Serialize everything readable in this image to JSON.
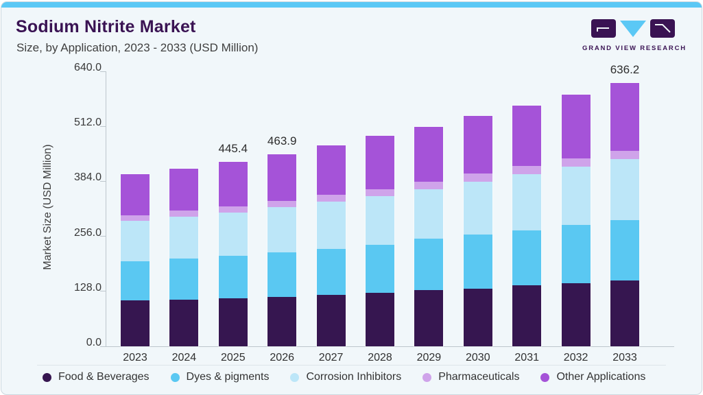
{
  "header": {
    "title": "Sodium Nitrite Market",
    "subtitle": "Size, by Application, 2023 - 2033 (USD Million)",
    "logo_text": "GRAND VIEW RESEARCH"
  },
  "chart_data": {
    "type": "bar",
    "stacked": true,
    "title": "Sodium Nitrite Market Size, by Application, 2023 - 2033 (USD Million)",
    "ylabel": "Market Size (USD Million)",
    "xlabel": "",
    "grid": false,
    "legend_position": "bottom",
    "ylim": [
      0,
      640
    ],
    "y_ticks": [
      "640.0",
      "512.0",
      "384.0",
      "256.0",
      "128.0",
      "0.0"
    ],
    "categories": [
      "2023",
      "2024",
      "2025",
      "2026",
      "2027",
      "2028",
      "2029",
      "2030",
      "2031",
      "2032",
      "2033"
    ],
    "series": [
      {
        "name": "Food & Beverages",
        "color": "#361650",
        "values": [
          110.5,
          113.4,
          116.2,
          120.0,
          123.9,
          128.9,
          136.0,
          139.8,
          147.1,
          152.1,
          159.7
        ]
      },
      {
        "name": "Dyes & pigments",
        "color": "#5ac8f2",
        "values": [
          95.0,
          98.0,
          103.0,
          107.5,
          112.0,
          117.0,
          123.6,
          129.8,
          133.4,
          140.6,
          145.6
        ]
      },
      {
        "name": "Corrosion Inhibitors",
        "color": "#bce6f8",
        "values": [
          96.7,
          101.0,
          103.8,
          108.2,
          113.1,
          116.5,
          120.2,
          127.9,
          135.2,
          140.7,
          146.3
        ]
      },
      {
        "name": "Pharmaceuticals",
        "color": "#cfa3ea",
        "values": [
          14.0,
          14.7,
          15.2,
          15.8,
          16.6,
          17.5,
          18.2,
          19.3,
          19.8,
          20.0,
          20.3
        ]
      },
      {
        "name": "Other Applications",
        "color": "#a553d8",
        "values": [
          99.0,
          101.3,
          107.2,
          112.4,
          119.1,
          127.9,
          132.4,
          139.5,
          145.7,
          154.2,
          164.3
        ]
      }
    ],
    "bar_value_labels": [
      "",
      "",
      "445.4",
      "463.9",
      "",
      "",
      "",
      "",
      "",
      "",
      "636.2"
    ],
    "labeled_totals": {
      "2025": 445.4,
      "2026": 463.9,
      "2033": 636.2
    }
  },
  "colors": {
    "accent_bar": "#5bc8f5",
    "brand_purple": "#3a1353",
    "card_background": "#f1f7fa",
    "axis_line": "#bdc6cc"
  }
}
